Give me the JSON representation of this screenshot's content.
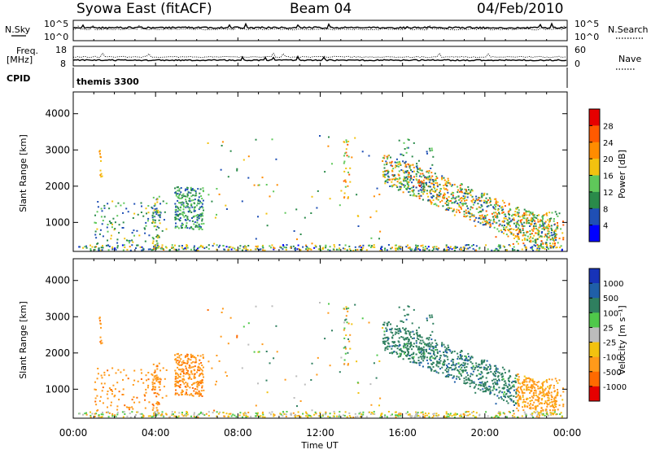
{
  "header": {
    "station": "Syowa East (fitACF)",
    "beam": "Beam 04",
    "date": "04/Feb/2010"
  },
  "strip1": {
    "left_label": "N.Sky",
    "right_label": "N.Search",
    "ticks_left": [
      "10^5",
      "10^0"
    ],
    "ticks_right": [
      "10^5",
      "10^0"
    ]
  },
  "strip2": {
    "left_label_top": "Freq.",
    "left_label_bottom": "[MHz]",
    "right_label": "Nave",
    "ticks_left": [
      "18",
      "8"
    ],
    "ticks_right": [
      "60",
      "0"
    ]
  },
  "cpid": {
    "label": "CPID",
    "value": "themis 3300"
  },
  "xaxis": {
    "title": "Time UT",
    "ticks": [
      "00:00",
      "04:00",
      "08:00",
      "12:00",
      "16:00",
      "20:00",
      "00:00"
    ]
  },
  "colors": {
    "power_scale": [
      "#0000ff",
      "#1f4fb5",
      "#2a8a4a",
      "#5fc85a",
      "#f2c20f",
      "#ff8c00",
      "#ff5a00",
      "#e60000"
    ],
    "velocity_scale": [
      "#1733b8",
      "#1f5fa8",
      "#2f7f5f",
      "#4fc84a",
      "#bcbcbc",
      "#f2c20f",
      "#ff9a1a",
      "#ff6a00",
      "#e60000"
    ]
  },
  "chart_data": [
    {
      "type": "heatmap",
      "ylabel": "Slant Range [km]",
      "xlabel": "",
      "yticks": [
        "1000",
        "2000",
        "3000",
        "4000"
      ],
      "ylim": [
        200,
        4600
      ],
      "xlim": [
        0,
        24
      ],
      "colorbar": {
        "label": "Power [dB]",
        "ticks": [
          "4",
          "8",
          "12",
          "16",
          "20",
          "24",
          "28"
        ]
      },
      "data_points": [
        {
          "t": 1.3,
          "r": 2800,
          "v": 20
        },
        {
          "t": 2.4,
          "r": 1000,
          "v": 8
        },
        {
          "t": 3.6,
          "r": 1100,
          "v": 4
        },
        {
          "t": 4.0,
          "r": 800,
          "v": 8
        },
        {
          "t": 5.3,
          "r": 1200,
          "v": 12
        },
        {
          "t": 5.7,
          "r": 1500,
          "v": 12
        },
        {
          "t": 6.1,
          "r": 1800,
          "v": 8
        },
        {
          "t": 11.8,
          "r": 1400,
          "v": 4
        },
        {
          "t": 13.3,
          "r": 2000,
          "v": 20
        },
        {
          "t": 16.2,
          "r": 2200,
          "v": 8
        },
        {
          "t": 16.8,
          "r": 2000,
          "v": 28
        },
        {
          "t": 17.5,
          "r": 1500,
          "v": 12
        },
        {
          "t": 18.5,
          "r": 1200,
          "v": 16
        },
        {
          "t": 19.5,
          "r": 900,
          "v": 20
        },
        {
          "t": 20.5,
          "r": 600,
          "v": 24
        },
        {
          "t": 22.5,
          "r": 700,
          "v": 16
        }
      ]
    },
    {
      "type": "heatmap",
      "ylabel": "Slant Range [km]",
      "xlabel": "Time UT",
      "yticks": [
        "1000",
        "2000",
        "3000",
        "4000"
      ],
      "ylim": [
        200,
        4600
      ],
      "xlim": [
        0,
        24
      ],
      "colorbar": {
        "label": "Velocity [m s⁻¹]",
        "ticks": [
          "1000",
          "500",
          "100",
          "25",
          "-25",
          "-100",
          "-500",
          "-1000"
        ]
      },
      "data_points": [
        {
          "t": 1.3,
          "r": 2800,
          "v": -100
        },
        {
          "t": 3.3,
          "r": 800,
          "v": -500
        },
        {
          "t": 5.3,
          "r": 1200,
          "v": -500
        },
        {
          "t": 6.0,
          "r": 1700,
          "v": -500
        },
        {
          "t": 13.3,
          "r": 2000,
          "v": -500
        },
        {
          "t": 16.5,
          "r": 2100,
          "v": 100
        },
        {
          "t": 17.5,
          "r": 1500,
          "v": 500
        },
        {
          "t": 18.5,
          "r": 1200,
          "v": 500
        },
        {
          "t": 19.5,
          "r": 900,
          "v": 100
        },
        {
          "t": 21.0,
          "r": 600,
          "v": -100
        }
      ]
    }
  ]
}
